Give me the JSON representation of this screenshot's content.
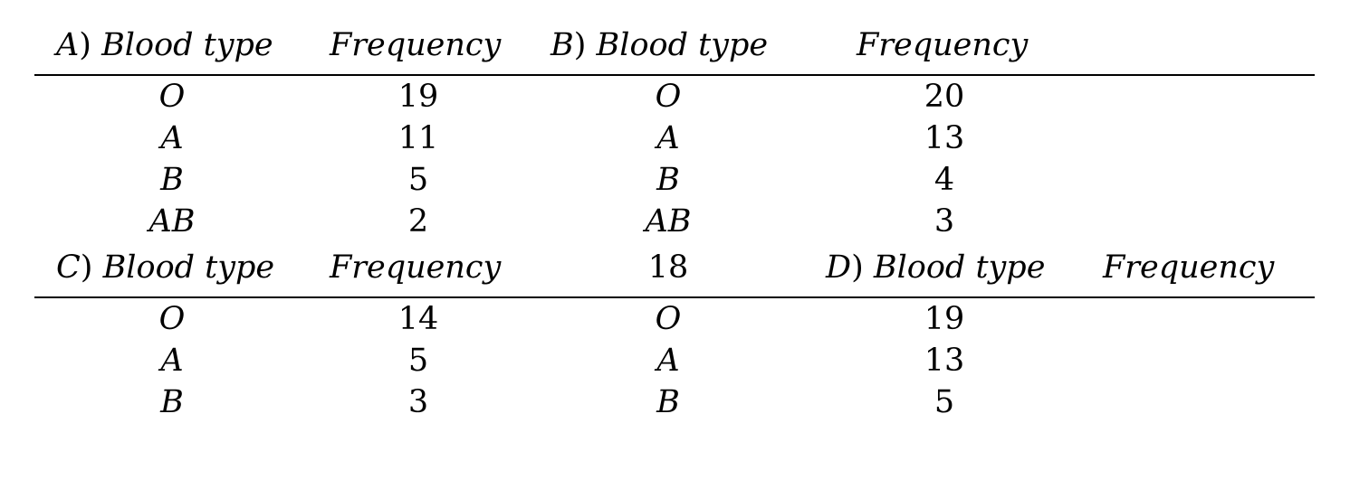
{
  "section1": {
    "header": {
      "a_letter": "A",
      "a_paren": ")",
      "a_label": "Blood type",
      "a_freq": "Frequency",
      "b_letter": "B",
      "b_paren": ")",
      "b_label": "Blood type",
      "b_freq": "Frequency"
    },
    "rows": [
      {
        "a_type": "O",
        "a_freq": "19",
        "b_type": "O",
        "b_freq": "20"
      },
      {
        "a_type": "A",
        "a_freq": "11",
        "b_type": "A",
        "b_freq": "13"
      },
      {
        "a_type": "B",
        "a_freq": "5",
        "b_type": "B",
        "b_freq": "4"
      },
      {
        "a_type": "AB",
        "a_freq": "2",
        "b_type": "AB",
        "b_freq": "3"
      }
    ]
  },
  "section2": {
    "header": {
      "c_letter": "C",
      "c_paren": ")",
      "c_label": "Blood type",
      "c_freq": "Frequency",
      "middle": "18",
      "d_letter": "D",
      "d_paren": ")",
      "d_label": "Blood type",
      "d_freq": "Frequency"
    },
    "rows": [
      {
        "c_type": "O",
        "c_freq": "14",
        "d_type": "O",
        "d_freq": "19"
      },
      {
        "c_type": "A",
        "c_freq": "5",
        "d_type": "A",
        "d_freq": "13"
      },
      {
        "c_type": "B",
        "c_freq": "3",
        "d_type": "B",
        "d_freq": "5"
      }
    ]
  }
}
